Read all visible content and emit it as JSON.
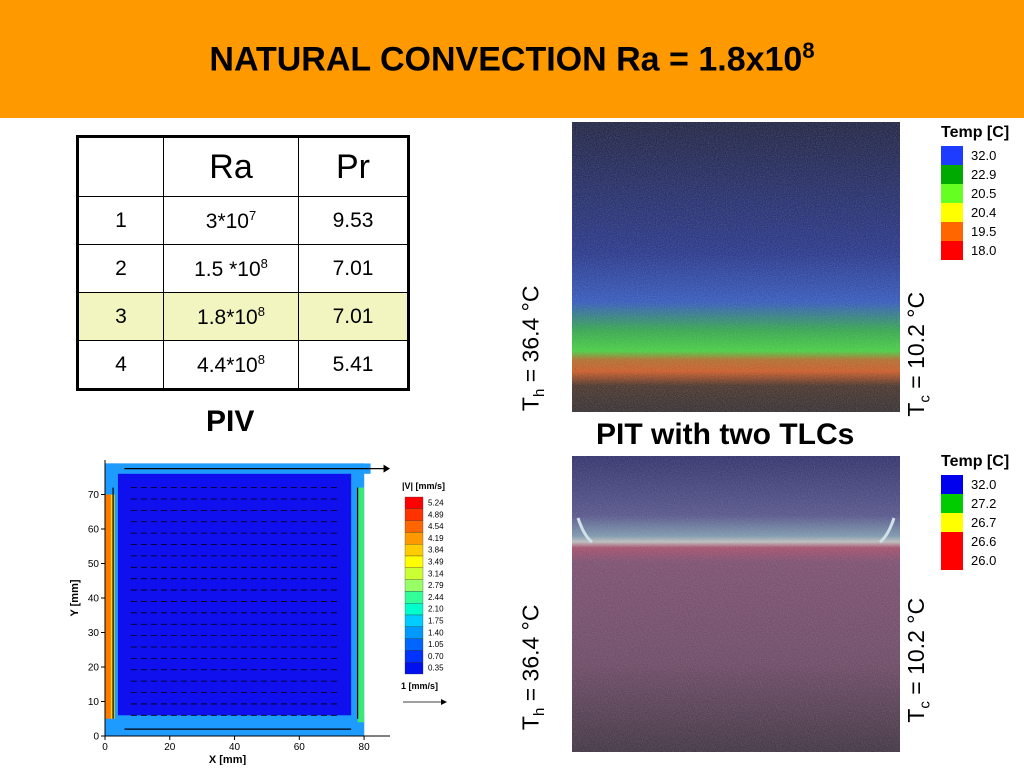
{
  "title": {
    "main": "NATURAL CONVECTION  Ra = 1.8x10",
    "sup": "8"
  },
  "table": {
    "headers": [
      "",
      "Ra",
      "Pr"
    ],
    "rows": [
      {
        "id": "1",
        "ra_base": "3*10",
        "ra_exp": "7",
        "pr": "9.53"
      },
      {
        "id": "2",
        "ra_base": "1.5 *10",
        "ra_exp": "8",
        "pr": "7.01"
      },
      {
        "id": "3",
        "ra_base": "1.8*10",
        "ra_exp": "8",
        "pr": "7.01"
      },
      {
        "id": "4",
        "ra_base": "4.4*10",
        "ra_exp": "8",
        "pr": "5.41"
      }
    ],
    "highlight_color": "#F2F5C0"
  },
  "piv_label": "PIV",
  "pit_label": "PIT with two TLCs",
  "th": {
    "symbol": "T",
    "sub": "h",
    "value": " = 36.4 °C"
  },
  "tc": {
    "symbol": "T",
    "sub": "c",
    "value": " = 10.2 °C"
  },
  "legend_top": {
    "title": "Temp [C]",
    "entries": [
      {
        "label": "32.0",
        "color": "#1E3CFF"
      },
      {
        "label": "22.9",
        "color": "#00AA00"
      },
      {
        "label": "20.5",
        "color": "#66FF22"
      },
      {
        "label": "20.4",
        "color": "#FFFF00"
      },
      {
        "label": "19.5",
        "color": "#FF6600"
      },
      {
        "label": "18.0",
        "color": "#FF0000"
      }
    ]
  },
  "legend_bottom": {
    "title": "Temp [C]",
    "entries": [
      {
        "label": "32.0",
        "color": "#0000EE"
      },
      {
        "label": "27.2",
        "color": "#00CC00"
      },
      {
        "label": "26.7",
        "color": "#FFFF00"
      },
      {
        "label": "26.6",
        "color": "#FF0000"
      },
      {
        "label": "26.0",
        "color": "#FF0000"
      }
    ]
  },
  "chart_data": {
    "type": "vector-field",
    "xlabel": "X [mm]",
    "ylabel": "Y [mm]",
    "xticks": [
      "0",
      "20",
      "40",
      "60",
      "80"
    ],
    "yticks": [
      "0",
      "10",
      "20",
      "30",
      "40",
      "50",
      "60",
      "70"
    ],
    "xlim": [
      0,
      88
    ],
    "ylim": [
      0,
      80
    ],
    "colorbar_title": "|V| [mm/s]",
    "colorbar_levels": [
      "5.24",
      "4.89",
      "4.54",
      "4.19",
      "3.84",
      "3.49",
      "3.14",
      "2.79",
      "2.44",
      "2.10",
      "1.75",
      "1.40",
      "1.05",
      "0.70",
      "0.35"
    ],
    "colorbar_colors": [
      "#FF0000",
      "#FF3300",
      "#FF6600",
      "#FF9900",
      "#FFCC00",
      "#FFFF00",
      "#CCFF33",
      "#99FF66",
      "#33FF99",
      "#00FFCC",
      "#00CCFF",
      "#0099FF",
      "#0066FF",
      "#0033FF",
      "#0011EE"
    ],
    "reference_vector": "1 [mm/s]"
  }
}
